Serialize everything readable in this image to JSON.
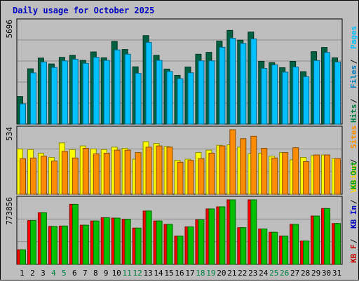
{
  "chart_data": {
    "type": "bar",
    "title": "Daily usage for October 2025",
    "categories": [
      "1",
      "2",
      "3",
      "4",
      "5",
      "6",
      "7",
      "8",
      "9",
      "10",
      "11",
      "12",
      "13",
      "14",
      "15",
      "16",
      "17",
      "18",
      "19",
      "20",
      "21",
      "22",
      "23",
      "24",
      "25",
      "26",
      "27",
      "28",
      "29",
      "30",
      "31"
    ],
    "weekend_days": [
      "4",
      "5",
      "11",
      "12",
      "18",
      "19",
      "25",
      "26"
    ],
    "panels": [
      {
        "name": "top",
        "ymax_label": "5696",
        "ymax": 5696,
        "right_labels": [
          {
            "text": "Hits",
            "color": "#008040"
          },
          {
            "text": "Files",
            "color": "#0080c0"
          },
          {
            "text": "Pages",
            "color": "#00c0ff"
          }
        ],
        "series": [
          {
            "name": "Hits",
            "color": "#006040",
            "values": [
              1545,
              3100,
              3700,
              3370,
              3740,
              3855,
              3570,
              4045,
              3715,
              4630,
              4180,
              3210,
              4960,
              3855,
              3085,
              2730,
              3200,
              3915,
              4020,
              4650,
              5250,
              4705,
              5160,
              3515,
              3445,
              3160,
              3515,
              2940,
              4060,
              4295,
              3715
            ]
          },
          {
            "name": "Files",
            "color": "#00c0ff",
            "values": [
              1135,
              2870,
              3480,
              3170,
              3545,
              3630,
              3405,
              3740,
              3570,
              4155,
              3915,
              2845,
              4580,
              3570,
              2950,
              2545,
              2875,
              3545,
              3545,
              4305,
              4810,
              4520,
              4770,
              3120,
              3320,
              2910,
              3195,
              2655,
              3560,
              4010,
              3480
            ]
          }
        ]
      },
      {
        "name": "middle",
        "ymax_label": "534",
        "ymax": 534,
        "right_labels": [
          {
            "text": "Visits",
            "color": "#ffd700"
          },
          {
            "text": "Sites",
            "color": "#ff8c00"
          }
        ],
        "series": [
          {
            "name": "Visits",
            "color": "#ffff00",
            "values": [
              375,
              370,
              340,
              305,
              425,
              370,
              400,
              375,
              370,
              390,
              380,
              290,
              435,
              420,
              395,
              280,
              290,
              345,
              365,
              405,
              410,
              390,
              335,
              340,
              315,
              345,
              285,
              305,
              320,
              325,
              295
            ]
          },
          {
            "name": "Sites",
            "color": "#ff8c00",
            "values": [
              295,
              300,
              315,
              275,
              355,
              300,
              380,
              335,
              340,
              365,
              365,
              345,
              390,
              400,
              390,
              265,
              280,
              295,
              340,
              400,
              534,
              460,
              480,
              380,
              300,
              345,
              385,
              270,
              325,
              325,
              295
            ]
          }
        ]
      },
      {
        "name": "bottom",
        "ymax_label": "773856",
        "ymax": 773856,
        "right_labels": [
          {
            "text": "KB F",
            "color": "#c00000"
          },
          {
            "text": "KB In",
            "color": "#0000c0"
          },
          {
            "text": "KB Out",
            "color": "#00a000"
          }
        ],
        "series": [
          {
            "name": "KB F",
            "color": "#ff0000",
            "values": [
              175000,
              525000,
              620000,
              455000,
              460000,
              720000,
              470000,
              520000,
              560000,
              555000,
              540000,
              435000,
              640000,
              520000,
              480000,
              340000,
              450000,
              535000,
              665000,
              690000,
              773856,
              440000,
              773856,
              425000,
              385000,
              340000,
              480000,
              280000,
              580000,
              670000,
              490000
            ]
          },
          {
            "name": "KB Out",
            "color": "#00c000",
            "values": [
              175000,
              525000,
              620000,
              455000,
              460000,
              720000,
              470000,
              520000,
              560000,
              555000,
              540000,
              435000,
              640000,
              520000,
              480000,
              340000,
              450000,
              535000,
              665000,
              690000,
              773856,
              440000,
              773856,
              425000,
              385000,
              340000,
              480000,
              280000,
              580000,
              670000,
              490000
            ]
          }
        ]
      }
    ],
    "grid": true
  }
}
